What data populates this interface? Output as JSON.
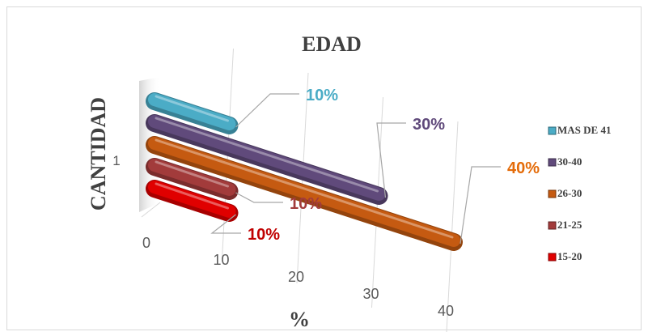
{
  "chart_data": {
    "type": "bar",
    "title": "EDAD",
    "xlabel": "%",
    "ylabel": "CANTIDAD",
    "categories": [
      "1"
    ],
    "xlim": [
      0,
      40
    ],
    "x_ticks": [
      "0",
      "10",
      "20",
      "30",
      "40"
    ],
    "grid": true,
    "legend_position": "right",
    "series": [
      {
        "name": "MAS DE 41",
        "values": [
          10
        ],
        "label": "10%",
        "color": "#4bacc6",
        "label_color": "#4bacc6"
      },
      {
        "name": "30-40",
        "values": [
          30
        ],
        "label": "30%",
        "color": "#604a7b",
        "label_color": "#604a7b"
      },
      {
        "name": "26-30",
        "values": [
          40
        ],
        "label": "40%",
        "color": "#c55a11",
        "label_color": "#e46c0a"
      },
      {
        "name": "21-25",
        "values": [
          10
        ],
        "label": "10%",
        "color": "#a23b3b",
        "label_color": "#a23b3b"
      },
      {
        "name": "15-20",
        "values": [
          10
        ],
        "label": "10%",
        "color": "#e00000",
        "label_color": "#c00000"
      }
    ]
  }
}
